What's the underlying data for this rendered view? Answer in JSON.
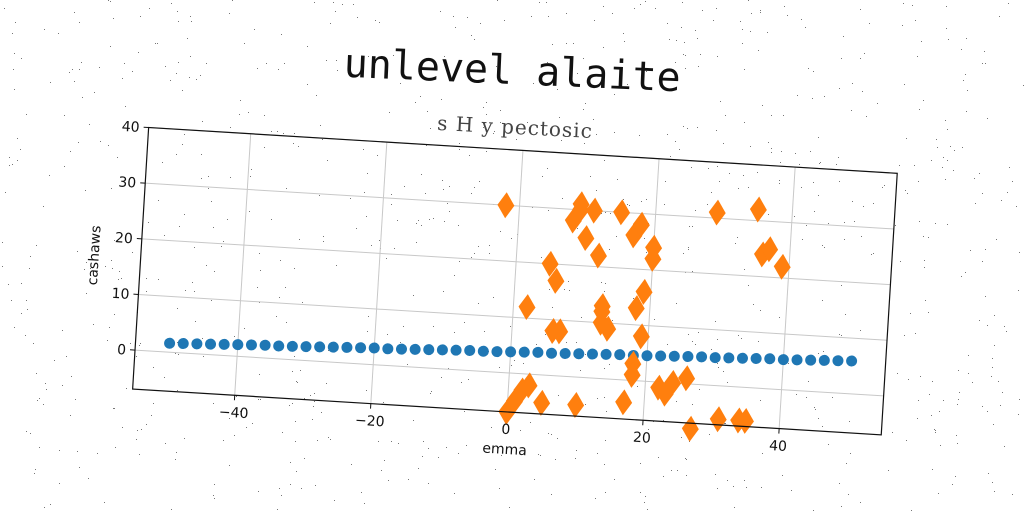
{
  "colors": {
    "series_dots": "#1f77b4",
    "series_diamonds": "#ff7f0e"
  },
  "chart_data": {
    "type": "scatter",
    "title": "unlevel alaite",
    "subtitle": "s H y pectosic",
    "xlabel": "emma",
    "ylabel": "cashaws",
    "xlim": [
      -55,
      55
    ],
    "ylim": [
      -7,
      40
    ],
    "xticks": [
      -40,
      -20,
      0,
      20,
      40
    ],
    "yticks": [
      0,
      10,
      20,
      30,
      40
    ],
    "grid": true,
    "series": [
      {
        "marker": "circle",
        "color": "#1f77b4",
        "x": [
          -50,
          -48,
          -46,
          -44,
          -42,
          -40,
          -38,
          -36,
          -34,
          -32,
          -30,
          -28,
          -26,
          -24,
          -22,
          -20,
          -18,
          -16,
          -14,
          -12,
          -10,
          -8,
          -6,
          -4,
          -2,
          0,
          2,
          4,
          6,
          8,
          10,
          12,
          14,
          16,
          18,
          20,
          22,
          24,
          26,
          28,
          30,
          32,
          34,
          36,
          38,
          40,
          42,
          44,
          46,
          48,
          50
        ],
        "y": [
          1.6,
          1.7,
          1.8,
          1.9,
          2.0,
          2.1,
          2.2,
          2.3,
          2.3,
          2.4,
          2.5,
          2.6,
          2.7,
          2.8,
          2.9,
          3.0,
          3.0,
          3.1,
          3.2,
          3.3,
          3.4,
          3.5,
          3.6,
          3.6,
          3.7,
          3.8,
          3.9,
          4.0,
          4.0,
          4.1,
          4.2,
          4.3,
          4.4,
          4.5,
          4.5,
          4.6,
          4.7,
          4.8,
          4.9,
          5.0,
          5.0,
          5.1,
          5.2,
          5.3,
          5.4,
          5.4,
          5.5,
          5.6,
          5.7,
          5.8,
          5.9
        ]
      },
      {
        "marker": "diamond",
        "color": "#ff7f0e",
        "x": [
          -2,
          0,
          1,
          2,
          2,
          3,
          5,
          5,
          6,
          6,
          7,
          8,
          9,
          9,
          10,
          10,
          11,
          12,
          13,
          13,
          13,
          14,
          15,
          17,
          17,
          18,
          18,
          18,
          18,
          19,
          19,
          20,
          20,
          22,
          23,
          24,
          26,
          27,
          29,
          31,
          34,
          35,
          35,
          36,
          37,
          39
        ],
        "y": [
          30,
          -7,
          -5,
          12,
          -3,
          -2,
          -5,
          20,
          17,
          8,
          8,
          28,
          30,
          31,
          -5,
          25,
          30,
          22,
          13,
          10,
          12,
          9,
          30,
          26,
          -4,
          3,
          1,
          28,
          13,
          8,
          16,
          24,
          22,
          -1,
          -2,
          0,
          1,
          -8,
          31,
          -6,
          -6,
          -6,
          32,
          24,
          25,
          22
        ]
      }
    ]
  }
}
